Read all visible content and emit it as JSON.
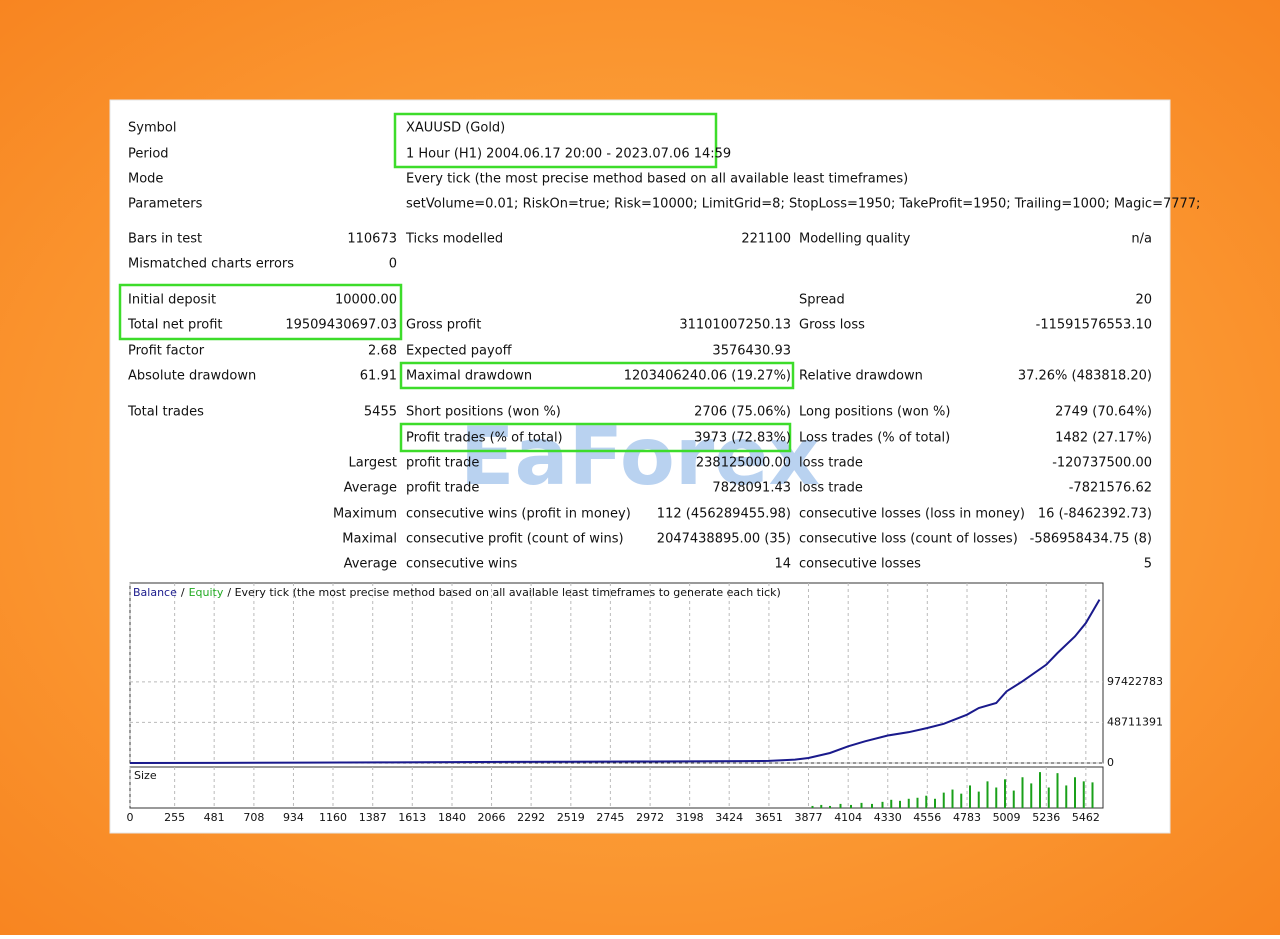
{
  "report": {
    "watermark": "EaForex",
    "rows": [
      {
        "l1": "Symbol",
        "l2": "XAUUSD (Gold)"
      },
      {
        "l1": "Period",
        "l2": "1 Hour (H1) 2004.06.17 20:00 - 2023.07.06 14:59"
      },
      {
        "l1": "Mode",
        "l2": "Every tick (the most precise method based on all available least timeframes)"
      },
      {
        "l1": "Parameters",
        "l2": "setVolume=0.01; RiskOn=true; Risk=10000; LimitGrid=8; StopLoss=1950; TakeProfit=1950; Trailing=1000; Magic=7777;"
      },
      {
        "l1": "Bars in test",
        "v1": "110673",
        "l2": "Ticks modelled",
        "v2": "221100",
        "l3": "Modelling quality",
        "v3": "n/a"
      },
      {
        "l1": "Mismatched charts errors",
        "v1": "0"
      },
      {
        "l1": "Initial deposit",
        "v1": "10000.00",
        "l3": "Spread",
        "v3": "20"
      },
      {
        "l1": "Total net profit",
        "v1": "19509430697.03",
        "l2": "Gross profit",
        "v2": "31101007250.13",
        "l3": "Gross loss",
        "v3": "-11591576553.10"
      },
      {
        "l1": "Profit factor",
        "v1": "2.68",
        "l2": "Expected payoff",
        "v2": "3576430.93"
      },
      {
        "l1": "Absolute drawdown",
        "v1": "61.91",
        "l2": "Maximal drawdown",
        "v2": "1203406240.06 (19.27%)",
        "l3": "Relative drawdown",
        "v3": "37.26% (483818.20)"
      },
      {
        "l1": "Total trades",
        "v1": "5455",
        "l2": "Short positions (won %)",
        "v2": "2706 (75.06%)",
        "l3": "Long positions (won %)",
        "v3": "2749 (70.64%)"
      },
      {
        "l2": "Profit trades (% of total)",
        "v2": "3973 (72.83%)",
        "l3": "Loss trades (% of total)",
        "v3": "1482 (27.17%)"
      },
      {
        "v1": "Largest",
        "l2": "profit trade",
        "v2": "238125000.00",
        "l3": "loss trade",
        "v3": "-120737500.00"
      },
      {
        "v1": "Average",
        "l2": "profit trade",
        "v2": "7828091.43",
        "l3": "loss trade",
        "v3": "-7821576.62"
      },
      {
        "v1": "Maximum",
        "l2": "consecutive wins (profit in money)",
        "v2": "112 (456289455.98)",
        "l3": "consecutive losses (loss in money)",
        "v3": "16 (-8462392.73)"
      },
      {
        "v1": "Maximal",
        "l2": "consecutive profit (count of wins)",
        "v2": "2047438895.00 (35)",
        "l3": "consecutive loss (count of losses)",
        "v3": "-586958434.75 (8)"
      },
      {
        "v1": "Average",
        "l2": "consecutive wins",
        "v2": "14",
        "l3": "consecutive losses",
        "v3": "5"
      }
    ]
  },
  "chart_data": {
    "type": "line",
    "legend_separator": "/",
    "legend_note": "/ Every tick (the most precise method based on all available least timeframes to generate each tick)",
    "equity": {
      "name": "Equity",
      "color": "#22aa22"
    },
    "series": [
      {
        "name": "Balance",
        "color": "#1a1a8c",
        "x": [
          0,
          500,
          1000,
          1500,
          2000,
          2500,
          3000,
          3500,
          3651,
          3800,
          3877,
          4000,
          4104,
          4200,
          4330,
          4450,
          4556,
          4650,
          4783,
          4850,
          4950,
          5009,
          5100,
          5236,
          5300,
          5400,
          5462,
          5540
        ],
        "values": [
          10000,
          150000,
          400000,
          800000,
          1200000,
          1500000,
          1800000,
          2200000,
          2500000,
          4000000,
          6000000,
          12000000,
          20000000,
          26000000,
          33000000,
          37000000,
          42000000,
          47000000,
          58000000,
          66000000,
          72000000,
          86000000,
          98000000,
          118000000,
          132000000,
          152000000,
          168000000,
          196000000
        ]
      }
    ],
    "xlim": [
      0,
      5560
    ],
    "xticks": [
      0,
      255,
      481,
      708,
      934,
      1160,
      1387,
      1613,
      1840,
      2066,
      2292,
      2519,
      2745,
      2972,
      3198,
      3424,
      3651,
      3877,
      4104,
      4330,
      4556,
      4783,
      5009,
      5236,
      5462
    ],
    "ylim": [
      0,
      216000000
    ],
    "yticks": [
      0,
      48711391,
      97422783
    ],
    "grid": true,
    "size": {
      "label": "Size",
      "color": "#1aa01a",
      "ylim": [
        0,
        40
      ],
      "x": [
        3900,
        3950,
        4000,
        4060,
        4120,
        4180,
        4240,
        4300,
        4350,
        4400,
        4450,
        4500,
        4550,
        4600,
        4650,
        4700,
        4750,
        4800,
        4850,
        4900,
        4950,
        5000,
        5050,
        5100,
        5150,
        5200,
        5250,
        5300,
        5350,
        5400,
        5450,
        5500
      ],
      "values": [
        2,
        3,
        2,
        4,
        3,
        5,
        4,
        6,
        8,
        7,
        9,
        10,
        12,
        9,
        15,
        18,
        14,
        22,
        16,
        26,
        20,
        28,
        17,
        30,
        24,
        35,
        20,
        34,
        22,
        30,
        26,
        25
      ]
    }
  }
}
